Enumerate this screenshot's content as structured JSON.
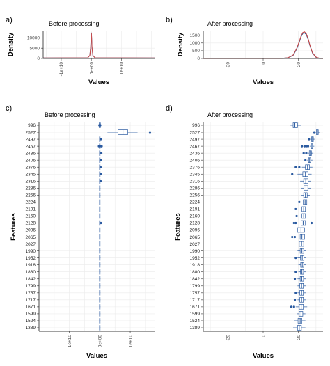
{
  "chart_data": [
    {
      "type": "line",
      "panel_label": "a)",
      "title": "Before processing",
      "xlabel": "Values",
      "ylabel": "Density",
      "x_ticks": [
        "-1e+10",
        "0e+00",
        "1e+10"
      ],
      "x_tick_values": [
        -10000000000,
        0,
        10000000000
      ],
      "y_ticks": [
        "0",
        "5000",
        "10000"
      ],
      "y_tick_values": [
        0,
        5000,
        10000
      ],
      "xlim": [
        -16000000000,
        21000000000
      ],
      "ylim": [
        0,
        13500
      ],
      "grid": true,
      "series": [
        {
          "color": "#1f4e8c",
          "x": [
            -16000000000,
            -1200000000,
            -500000000,
            -200000000,
            -80000000,
            0,
            80000000,
            200000000,
            500000000,
            1200000000,
            21000000000
          ],
          "y": [
            250,
            300,
            1500,
            5500,
            10500,
            12500,
            10500,
            5500,
            1500,
            300,
            250
          ]
        },
        {
          "color": "#c84b4b",
          "x": [
            -16000000000,
            -1200000000,
            -500000000,
            -200000000,
            -80000000,
            0,
            80000000,
            200000000,
            500000000,
            1200000000,
            21000000000
          ],
          "y": [
            250,
            300,
            1500,
            5500,
            10500,
            12500,
            10500,
            5500,
            1500,
            300,
            250
          ]
        }
      ]
    },
    {
      "type": "line",
      "panel_label": "b)",
      "title": "After processing",
      "xlabel": "Values",
      "ylabel": "Density",
      "x_ticks": [
        "-20",
        "0",
        "20"
      ],
      "x_tick_values": [
        -20,
        0,
        20
      ],
      "y_ticks": [
        "0",
        "500",
        "1000",
        "1500"
      ],
      "y_tick_values": [
        0,
        500,
        1000,
        1500
      ],
      "xlim": [
        -34,
        34
      ],
      "ylim": [
        0,
        1800
      ],
      "grid": true,
      "series": [
        {
          "color": "#1f4e8c",
          "x": [
            -34,
            10,
            14,
            17,
            19,
            20.5,
            21.5,
            22.5,
            23.5,
            24.5,
            25.5,
            26.5,
            28,
            30,
            32,
            34
          ],
          "y": [
            0,
            5,
            40,
            200,
            600,
            1050,
            1400,
            1620,
            1650,
            1550,
            1250,
            850,
            350,
            80,
            10,
            0
          ]
        },
        {
          "color": "#c84b4b",
          "x": [
            -34,
            10,
            14,
            17,
            19,
            20.5,
            21.5,
            22.5,
            23.5,
            24.5,
            25.5,
            26.5,
            28,
            30,
            32,
            34
          ],
          "y": [
            0,
            5,
            40,
            220,
            640,
            1100,
            1450,
            1680,
            1720,
            1600,
            1300,
            880,
            370,
            90,
            12,
            0
          ]
        }
      ]
    },
    {
      "type": "box",
      "panel_label": "c)",
      "title": "Before processing",
      "xlabel": "Values",
      "ylabel": "Features",
      "x_ticks": [
        "-1e+10",
        "0e+00",
        "1e+10"
      ],
      "x_tick_values": [
        -10000000000,
        0,
        10000000000
      ],
      "xlim": [
        -20000000000,
        18000000000
      ],
      "grid": true,
      "color": "#2a5aa0",
      "categories": [
        "996",
        "2527",
        "2497",
        "2467",
        "2436",
        "2406",
        "2376",
        "2345",
        "2316",
        "2286",
        "2256",
        "2224",
        "2191",
        "2160",
        "2128",
        "2096",
        "2065",
        "2027",
        "1990",
        "1952",
        "1918",
        "1880",
        "1842",
        "1799",
        "1757",
        "1717",
        "1671",
        "1599",
        "1524",
        "1389"
      ],
      "boxes": [
        {
          "category": "996",
          "whisker_low": -400000000,
          "q1": -200000000,
          "median": 0,
          "q3": 200000000,
          "whisker_high": 400000000,
          "outliers": [
            -150000000,
            150000000
          ]
        },
        {
          "category": "2527",
          "whisker_low": 2500000000,
          "q1": 6000000000,
          "median": 7600000000,
          "q3": 9200000000,
          "whisker_high": 12400000000,
          "outliers": [
            16500000000
          ]
        },
        {
          "category": "2497",
          "whisker_low": -200000000,
          "q1": -100000000,
          "median": 0,
          "q3": 100000000,
          "whisker_high": 200000000,
          "outliers": [
            300000000
          ]
        },
        {
          "category": "2467",
          "whisker_low": -200000000,
          "q1": -100000000,
          "median": 0,
          "q3": 100000000,
          "whisker_high": 200000000,
          "outliers": [
            -300000000,
            400000000,
            600000000
          ]
        },
        {
          "category": "2436",
          "whisker_low": -200000000,
          "q1": -100000000,
          "median": 0,
          "q3": 100000000,
          "whisker_high": 200000000,
          "outliers": [
            500000000
          ]
        },
        {
          "category": "2406",
          "whisker_low": -200000000,
          "q1": -100000000,
          "median": 0,
          "q3": 100000000,
          "whisker_high": 200000000,
          "outliers": [
            300000000
          ]
        },
        {
          "category": "2376",
          "whisker_low": -200000000,
          "q1": -100000000,
          "median": 0,
          "q3": 100000000,
          "whisker_high": 200000000,
          "outliers": [
            250000000
          ]
        },
        {
          "category": "2345",
          "whisker_low": -200000000,
          "q1": -100000000,
          "median": 0,
          "q3": 100000000,
          "whisker_high": 200000000,
          "outliers": [
            300000000
          ]
        },
        {
          "category": "2316",
          "whisker_low": -200000000,
          "q1": -100000000,
          "median": 0,
          "q3": 100000000,
          "whisker_high": 200000000,
          "outliers": [
            250000000
          ]
        },
        {
          "category": "2286",
          "whisker_low": -200000000,
          "q1": -100000000,
          "median": 0,
          "q3": 100000000,
          "whisker_high": 200000000,
          "outliers": []
        },
        {
          "category": "2256",
          "whisker_low": -200000000,
          "q1": -100000000,
          "median": 0,
          "q3": 100000000,
          "whisker_high": 200000000,
          "outliers": []
        },
        {
          "category": "2224",
          "whisker_low": -200000000,
          "q1": -100000000,
          "median": 0,
          "q3": 100000000,
          "whisker_high": 200000000,
          "outliers": []
        },
        {
          "category": "2191",
          "whisker_low": -200000000,
          "q1": -100000000,
          "median": 0,
          "q3": 100000000,
          "whisker_high": 200000000,
          "outliers": []
        },
        {
          "category": "2160",
          "whisker_low": -200000000,
          "q1": -100000000,
          "median": 0,
          "q3": 100000000,
          "whisker_high": 200000000,
          "outliers": []
        },
        {
          "category": "2128",
          "whisker_low": -200000000,
          "q1": -100000000,
          "median": 0,
          "q3": 100000000,
          "whisker_high": 200000000,
          "outliers": [
            400000000
          ]
        },
        {
          "category": "2096",
          "whisker_low": -200000000,
          "q1": -100000000,
          "median": 0,
          "q3": 100000000,
          "whisker_high": 200000000,
          "outliers": []
        },
        {
          "category": "2065",
          "whisker_low": -200000000,
          "q1": -100000000,
          "median": 0,
          "q3": 100000000,
          "whisker_high": 200000000,
          "outliers": []
        },
        {
          "category": "2027",
          "whisker_low": -200000000,
          "q1": -100000000,
          "median": 0,
          "q3": 100000000,
          "whisker_high": 200000000,
          "outliers": []
        },
        {
          "category": "1990",
          "whisker_low": -200000000,
          "q1": -100000000,
          "median": 0,
          "q3": 100000000,
          "whisker_high": 200000000,
          "outliers": []
        },
        {
          "category": "1952",
          "whisker_low": -200000000,
          "q1": -100000000,
          "median": 0,
          "q3": 100000000,
          "whisker_high": 200000000,
          "outliers": []
        },
        {
          "category": "1918",
          "whisker_low": -200000000,
          "q1": -100000000,
          "median": 0,
          "q3": 100000000,
          "whisker_high": 200000000,
          "outliers": []
        },
        {
          "category": "1880",
          "whisker_low": -200000000,
          "q1": -100000000,
          "median": 0,
          "q3": 100000000,
          "whisker_high": 200000000,
          "outliers": []
        },
        {
          "category": "1842",
          "whisker_low": -200000000,
          "q1": -100000000,
          "median": 0,
          "q3": 100000000,
          "whisker_high": 200000000,
          "outliers": []
        },
        {
          "category": "1799",
          "whisker_low": -200000000,
          "q1": -100000000,
          "median": 0,
          "q3": 100000000,
          "whisker_high": 200000000,
          "outliers": []
        },
        {
          "category": "1757",
          "whisker_low": -200000000,
          "q1": -100000000,
          "median": 0,
          "q3": 100000000,
          "whisker_high": 200000000,
          "outliers": []
        },
        {
          "category": "1717",
          "whisker_low": -200000000,
          "q1": -100000000,
          "median": 0,
          "q3": 100000000,
          "whisker_high": 200000000,
          "outliers": []
        },
        {
          "category": "1671",
          "whisker_low": -200000000,
          "q1": -100000000,
          "median": 0,
          "q3": 100000000,
          "whisker_high": 200000000,
          "outliers": []
        },
        {
          "category": "1599",
          "whisker_low": -200000000,
          "q1": -100000000,
          "median": 0,
          "q3": 100000000,
          "whisker_high": 200000000,
          "outliers": []
        },
        {
          "category": "1524",
          "whisker_low": -200000000,
          "q1": -100000000,
          "median": 0,
          "q3": 100000000,
          "whisker_high": 200000000,
          "outliers": []
        },
        {
          "category": "1389",
          "whisker_low": -200000000,
          "q1": -100000000,
          "median": 0,
          "q3": 100000000,
          "whisker_high": 200000000,
          "outliers": []
        }
      ]
    },
    {
      "type": "box",
      "panel_label": "d)",
      "title": "After processing",
      "xlabel": "Values",
      "ylabel": "Features",
      "x_ticks": [
        "-20",
        "0",
        "20"
      ],
      "x_tick_values": [
        -20,
        0,
        20
      ],
      "xlim": [
        -34,
        34
      ],
      "grid": true,
      "color": "#2a5aa0",
      "categories": [
        "996",
        "2527",
        "2497",
        "2467",
        "2436",
        "2406",
        "2376",
        "2345",
        "2316",
        "2286",
        "2256",
        "2224",
        "2191",
        "2160",
        "2128",
        "2096",
        "2065",
        "2027",
        "1990",
        "1952",
        "1918",
        "1880",
        "1842",
        "1799",
        "1757",
        "1717",
        "1671",
        "1599",
        "1524",
        "1389"
      ],
      "boxes": [
        {
          "category": "996",
          "whisker_low": 15.5,
          "q1": 17,
          "median": 18,
          "q3": 19.5,
          "whisker_high": 21.5,
          "outliers": []
        },
        {
          "category": "2527",
          "whisker_low": 29.5,
          "q1": 30.2,
          "median": 30.8,
          "q3": 31.3,
          "whisker_high": 32,
          "outliers": [
            29
          ]
        },
        {
          "category": "2497",
          "whisker_low": 26.8,
          "q1": 27.5,
          "median": 28,
          "q3": 28.5,
          "whisker_high": 29.2,
          "outliers": [
            26
          ]
        },
        {
          "category": "2467",
          "whisker_low": 26.5,
          "q1": 27.2,
          "median": 27.7,
          "q3": 28.2,
          "whisker_high": 29,
          "outliers": [
            22,
            23.5,
            24.5,
            25.5
          ]
        },
        {
          "category": "2436",
          "whisker_low": 25.5,
          "q1": 26.2,
          "median": 26.8,
          "q3": 27.4,
          "whisker_high": 28.5,
          "outliers": [
            23,
            24.5
          ]
        },
        {
          "category": "2406",
          "whisker_low": 25,
          "q1": 25.8,
          "median": 26.4,
          "q3": 27,
          "whisker_high": 28,
          "outliers": [
            24
          ]
        },
        {
          "category": "2376",
          "whisker_low": 22,
          "q1": 24,
          "median": 25.2,
          "q3": 26.3,
          "whisker_high": 28,
          "outliers": [
            18.5,
            20.5
          ]
        },
        {
          "category": "2345",
          "whisker_low": 19.5,
          "q1": 22.5,
          "median": 24,
          "q3": 25.5,
          "whisker_high": 27.5,
          "outliers": [
            16.5
          ]
        },
        {
          "category": "2316",
          "whisker_low": 21,
          "q1": 23,
          "median": 24.2,
          "q3": 25.5,
          "whisker_high": 27,
          "outliers": []
        },
        {
          "category": "2286",
          "whisker_low": 21.5,
          "q1": 23.2,
          "median": 24.3,
          "q3": 25.4,
          "whisker_high": 27,
          "outliers": []
        },
        {
          "category": "2256",
          "whisker_low": 21.5,
          "q1": 23,
          "median": 24,
          "q3": 25,
          "whisker_high": 26.5,
          "outliers": []
        },
        {
          "category": "2224",
          "whisker_low": 21.5,
          "q1": 22.8,
          "median": 23.8,
          "q3": 24.8,
          "whisker_high": 26.2,
          "outliers": [
            20.5
          ]
        },
        {
          "category": "2191",
          "whisker_low": 20.5,
          "q1": 22,
          "median": 23,
          "q3": 24,
          "whisker_high": 25.5,
          "outliers": [
            18.5
          ]
        },
        {
          "category": "2160",
          "whisker_low": 20.5,
          "q1": 22,
          "median": 23,
          "q3": 24,
          "whisker_high": 25.5,
          "outliers": [
            19
          ]
        },
        {
          "category": "2128",
          "whisker_low": 19.5,
          "q1": 21.5,
          "median": 22.7,
          "q3": 24,
          "whisker_high": 26,
          "outliers": [
            17.5,
            18.5,
            27.5
          ]
        },
        {
          "category": "2096",
          "whisker_low": 16,
          "q1": 19.5,
          "median": 21.5,
          "q3": 23.5,
          "whisker_high": 26,
          "outliers": []
        },
        {
          "category": "2065",
          "whisker_low": 19,
          "q1": 21,
          "median": 22,
          "q3": 23.5,
          "whisker_high": 25,
          "outliers": [
            16.5,
            18
          ]
        },
        {
          "category": "2027",
          "whisker_low": 18,
          "q1": 20.5,
          "median": 21.8,
          "q3": 23,
          "whisker_high": 24.5,
          "outliers": []
        },
        {
          "category": "1990",
          "whisker_low": 19.5,
          "q1": 21,
          "median": 22,
          "q3": 23,
          "whisker_high": 24.5,
          "outliers": []
        },
        {
          "category": "1952",
          "whisker_low": 19.5,
          "q1": 21.2,
          "median": 22.2,
          "q3": 23.2,
          "whisker_high": 24.5,
          "outliers": [
            18.5
          ]
        },
        {
          "category": "1918",
          "whisker_low": 20,
          "q1": 21.3,
          "median": 22.2,
          "q3": 23,
          "whisker_high": 24.3,
          "outliers": []
        },
        {
          "category": "1880",
          "whisker_low": 20,
          "q1": 21.2,
          "median": 22,
          "q3": 22.9,
          "whisker_high": 24.3,
          "outliers": [
            18.5
          ]
        },
        {
          "category": "1842",
          "whisker_low": 19.5,
          "q1": 21,
          "median": 21.9,
          "q3": 22.9,
          "whisker_high": 24.5,
          "outliers": [
            18
          ]
        },
        {
          "category": "1799",
          "whisker_low": 19.5,
          "q1": 20.8,
          "median": 21.8,
          "q3": 22.8,
          "whisker_high": 24.3,
          "outliers": []
        },
        {
          "category": "1757",
          "whisker_low": 19.5,
          "q1": 20.8,
          "median": 21.8,
          "q3": 22.8,
          "whisker_high": 24.3,
          "outliers": [
            18.5
          ]
        },
        {
          "category": "1717",
          "whisker_low": 19.5,
          "q1": 20.8,
          "median": 21.8,
          "q3": 22.8,
          "whisker_high": 24.3,
          "outliers": [
            18
          ]
        },
        {
          "category": "1671",
          "whisker_low": 18.5,
          "q1": 20.5,
          "median": 21.6,
          "q3": 22.8,
          "whisker_high": 25,
          "outliers": [
            16,
            17.5
          ]
        },
        {
          "category": "1599",
          "whisker_low": 19,
          "q1": 20.5,
          "median": 21.5,
          "q3": 22.5,
          "whisker_high": 24,
          "outliers": []
        },
        {
          "category": "1524",
          "whisker_low": 17.5,
          "q1": 19.8,
          "median": 21,
          "q3": 22,
          "whisker_high": 24,
          "outliers": []
        },
        {
          "category": "1389",
          "whisker_low": 17,
          "q1": 19.5,
          "median": 20.5,
          "q3": 21.7,
          "whisker_high": 24,
          "outliers": []
        }
      ]
    }
  ]
}
